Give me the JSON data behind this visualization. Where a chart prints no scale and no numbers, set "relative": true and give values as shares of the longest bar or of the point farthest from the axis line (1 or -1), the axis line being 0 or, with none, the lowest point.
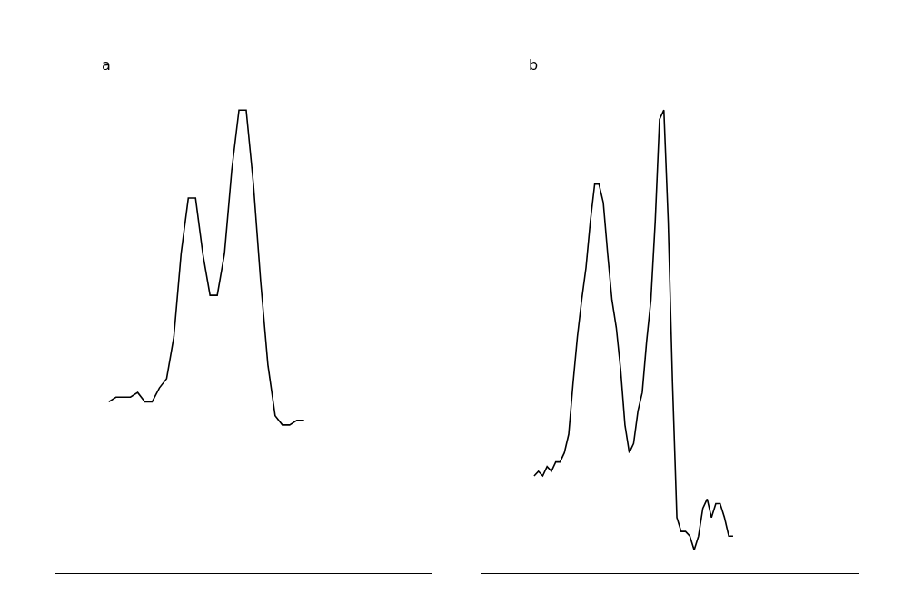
{
  "chart_data": [
    {
      "type": "line",
      "title": "a",
      "relative": true,
      "tick_labels": false,
      "marker": "none",
      "line_style": "solid",
      "categories": [
        null,
        null,
        null,
        null,
        null,
        null,
        null,
        null,
        null,
        null,
        null,
        null,
        null,
        null,
        null,
        null,
        null,
        null,
        null,
        null,
        null,
        null,
        null,
        null,
        null,
        null,
        null,
        null
      ],
      "series": [
        {
          "color": "#000000",
          "values": [
            0.37,
            0.38,
            0.38,
            0.38,
            0.39,
            0.37,
            0.37,
            0.4,
            0.42,
            0.51,
            0.69,
            0.81,
            0.81,
            0.69,
            0.6,
            0.6,
            0.69,
            0.87,
            1,
            1,
            0.84,
            0.63,
            0.45,
            0.34,
            0.32,
            0.32,
            0.33,
            0.33
          ]
        }
      ]
    },
    {
      "type": "line",
      "title": "b",
      "relative": true,
      "tick_labels": false,
      "marker": "none",
      "line_style": "solid",
      "categories": [
        null,
        null,
        null,
        null,
        null,
        null,
        null,
        null,
        null,
        null,
        null,
        null,
        null,
        null,
        null,
        null,
        null,
        null,
        null,
        null,
        null,
        null,
        null,
        null,
        null,
        null,
        null,
        null,
        null,
        null,
        null,
        null,
        null,
        null,
        null,
        null,
        null,
        null,
        null,
        null,
        null,
        null,
        null,
        null,
        null,
        null,
        null
      ],
      "series": [
        {
          "color": "#000000",
          "values": [
            0.21,
            0.22,
            0.21,
            0.23,
            0.22,
            0.24,
            0.24,
            0.26,
            0.3,
            0.41,
            0.51,
            0.59,
            0.66,
            0.76,
            0.84,
            0.84,
            0.8,
            0.69,
            0.59,
            0.53,
            0.44,
            0.32,
            0.26,
            0.28,
            0.35,
            0.39,
            0.5,
            0.59,
            0.76,
            0.98,
            1,
            0.76,
            0.41,
            0.12,
            0.09,
            0.09,
            0.08,
            0.05,
            0.08,
            0.14,
            0.16,
            0.12,
            0.15,
            0.15,
            0.12,
            0.08,
            0.08
          ]
        }
      ]
    }
  ]
}
